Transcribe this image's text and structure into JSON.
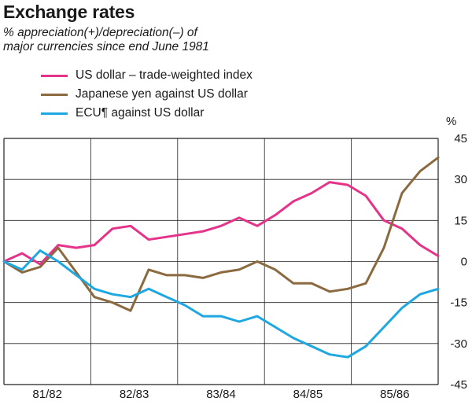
{
  "title": "Exchange rates",
  "subtitle_line1": "% appreciation(+)/depreciation(–) of",
  "subtitle_line2": "major currencies since end June 1981",
  "unit": "%",
  "chart_data": {
    "type": "line",
    "title": "Exchange rates",
    "subtitle": "% appreciation(+)/depreciation(–) of major currencies since end June 1981",
    "xlabel": "",
    "ylabel": "%",
    "ylim": [
      -45,
      45
    ],
    "yticks": [
      45,
      30,
      15,
      0,
      -15,
      -30,
      -45
    ],
    "ytick_labels": [
      "45",
      "30",
      "15",
      "0",
      "-15",
      "-30",
      "-45"
    ],
    "categories": [
      "81/82",
      "82/83",
      "83/84",
      "84/85",
      "85/86"
    ],
    "grid": true,
    "legend": "top-left",
    "x": [
      0,
      0.2,
      0.4,
      0.6,
      0.8,
      1.0,
      1.2,
      1.4,
      1.6,
      1.8,
      2.0,
      2.2,
      2.4,
      2.6,
      2.8,
      3.0,
      3.2,
      3.4,
      3.6,
      3.8,
      4.0,
      4.2,
      4.4,
      4.6,
      4.8
    ],
    "series": [
      {
        "name": "US dollar – trade-weighted index",
        "color": "#e6338a",
        "values": [
          0,
          3,
          -1,
          6,
          5,
          6,
          12,
          13,
          8,
          9,
          10,
          11,
          13,
          16,
          13,
          17,
          22,
          25,
          29,
          28,
          24,
          15,
          12,
          6,
          2
        ]
      },
      {
        "name": "Japanese yen against US dollar",
        "color": "#8b6a40",
        "values": [
          0,
          -4,
          -2,
          5,
          -4,
          -13,
          -15,
          -18,
          -3,
          -5,
          -5,
          -6,
          -4,
          -3,
          0,
          -3,
          -8,
          -8,
          -11,
          -10,
          -8,
          5,
          25,
          33,
          38
        ]
      },
      {
        "name": "ECU¶ against US dollar",
        "color": "#1ea7e1",
        "values": [
          0,
          -3,
          4,
          0,
          -5,
          -10,
          -12,
          -13,
          -10,
          -13,
          -16,
          -20,
          -20,
          -22,
          -20,
          -24,
          -28,
          -31,
          -34,
          -35,
          -31,
          -24,
          -17,
          -12,
          -10
        ]
      }
    ]
  }
}
